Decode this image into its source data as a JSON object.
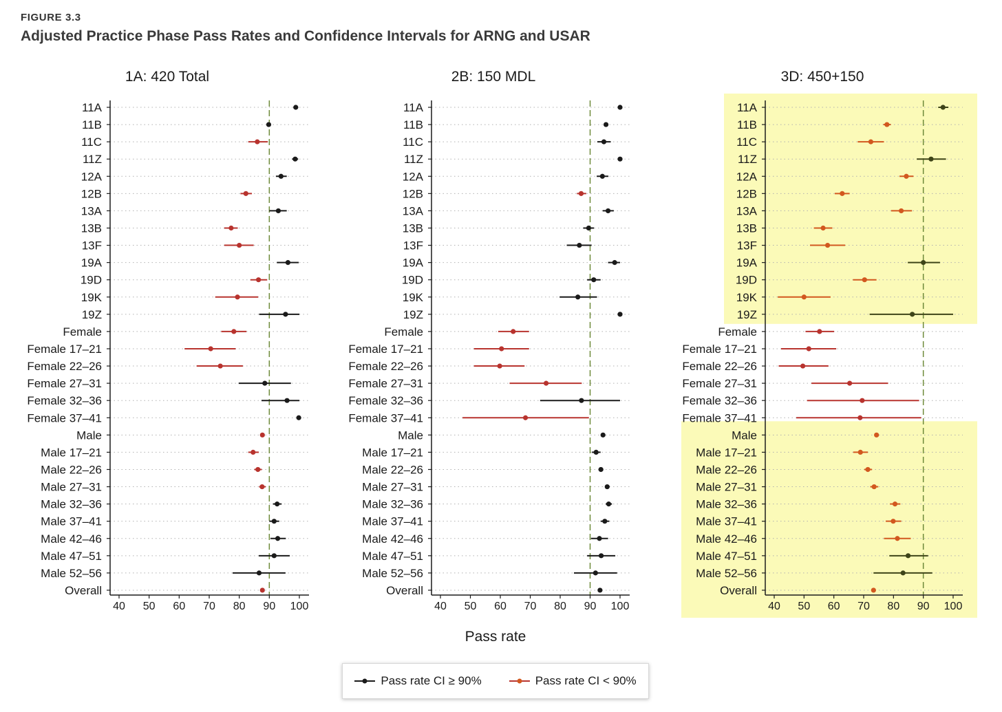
{
  "figure": {
    "label": "FIGURE 3.3",
    "title": "Adjusted Practice Phase Pass Rates and Confidence Intervals for ARNG and USAR"
  },
  "legend": {
    "items": [
      {
        "label": "Pass rate CI ≥ 90%",
        "color": "#1a1a1a"
      },
      {
        "label": "Pass rate CI < 90%",
        "color": "#b8332e"
      }
    ]
  },
  "colors": {
    "black": "#1a1a1a",
    "red": "#b8332e",
    "orange": "#d2581f",
    "olive": "#3e4418",
    "highlight": "#fbfab8",
    "reference_line": "#6e8a3a"
  },
  "chart_data": {
    "type": "forest",
    "xlabel": "Pass rate",
    "xlim": [
      40,
      100
    ],
    "xticks": [
      40,
      50,
      60,
      70,
      80,
      90,
      100
    ],
    "reference_line": 90,
    "categories": [
      "11A",
      "11B",
      "11C",
      "11Z",
      "12A",
      "12B",
      "13A",
      "13B",
      "13F",
      "19A",
      "19D",
      "19K",
      "19Z",
      "Female",
      "Female 17–21",
      "Female 22–26",
      "Female 27–31",
      "Female 32–36",
      "Female 37–41",
      "Male",
      "Male 17–21",
      "Male 22–26",
      "Male 27–31",
      "Male 32–36",
      "Male 37–41",
      "Male 42–46",
      "Male 47–51",
      "Male 52–56",
      "Overall"
    ],
    "panels": [
      {
        "title": "1A: 420 Total",
        "highlight_rows": [],
        "rows": [
          {
            "est": 98.8,
            "lo": 98.0,
            "hi": 99.6,
            "meets": true
          },
          {
            "est": 89.8,
            "lo": 89.3,
            "hi": 90.3,
            "meets": true
          },
          {
            "est": 86.0,
            "lo": 83.0,
            "hi": 89.5,
            "meets": false
          },
          {
            "est": 98.6,
            "lo": 97.6,
            "hi": 99.6,
            "meets": true
          },
          {
            "est": 93.9,
            "lo": 92.2,
            "hi": 95.8,
            "meets": true
          },
          {
            "est": 82.2,
            "lo": 80.4,
            "hi": 84.2,
            "meets": false
          },
          {
            "est": 93.0,
            "lo": 90.0,
            "hi": 95.8,
            "meets": true
          },
          {
            "est": 77.3,
            "lo": 75.0,
            "hi": 79.5,
            "meets": false
          },
          {
            "est": 80.0,
            "lo": 75.0,
            "hi": 84.8,
            "meets": false
          },
          {
            "est": 96.2,
            "lo": 92.5,
            "hi": 99.8,
            "meets": true
          },
          {
            "est": 86.4,
            "lo": 83.7,
            "hi": 89.3,
            "meets": false
          },
          {
            "est": 79.4,
            "lo": 72.0,
            "hi": 86.3,
            "meets": false
          },
          {
            "est": 95.4,
            "lo": 86.6,
            "hi": 100.0,
            "meets": true
          },
          {
            "est": 78.2,
            "lo": 74.0,
            "hi": 82.4,
            "meets": false
          },
          {
            "est": 70.5,
            "lo": 61.8,
            "hi": 78.8,
            "meets": false
          },
          {
            "est": 73.7,
            "lo": 65.8,
            "hi": 81.2,
            "meets": false
          },
          {
            "est": 88.5,
            "lo": 79.8,
            "hi": 97.2,
            "meets": true
          },
          {
            "est": 95.9,
            "lo": 87.4,
            "hi": 100.0,
            "meets": true
          },
          {
            "est": 99.8,
            "lo": 99.3,
            "hi": 100.0,
            "meets": true
          },
          {
            "est": 87.7,
            "lo": 87.0,
            "hi": 88.4,
            "meets": false
          },
          {
            "est": 84.6,
            "lo": 83.0,
            "hi": 86.5,
            "meets": false
          },
          {
            "est": 86.2,
            "lo": 85.0,
            "hi": 87.5,
            "meets": false
          },
          {
            "est": 87.6,
            "lo": 86.6,
            "hi": 88.8,
            "meets": false
          },
          {
            "est": 92.6,
            "lo": 91.2,
            "hi": 94.1,
            "meets": true
          },
          {
            "est": 91.6,
            "lo": 90.0,
            "hi": 93.3,
            "meets": true
          },
          {
            "est": 92.8,
            "lo": 90.4,
            "hi": 95.5,
            "meets": true
          },
          {
            "est": 91.6,
            "lo": 86.5,
            "hi": 96.8,
            "meets": true
          },
          {
            "est": 86.6,
            "lo": 77.8,
            "hi": 95.4,
            "meets": true
          },
          {
            "est": 87.7,
            "lo": 87.0,
            "hi": 88.4,
            "meets": false
          }
        ]
      },
      {
        "title": "2B: 150 MDL",
        "highlight_rows": [],
        "rows": [
          {
            "est": 100.0,
            "lo": 99.5,
            "hi": 100.0,
            "meets": true
          },
          {
            "est": 95.3,
            "lo": 94.8,
            "hi": 95.9,
            "meets": true
          },
          {
            "est": 94.6,
            "lo": 92.4,
            "hi": 96.9,
            "meets": true
          },
          {
            "est": 100.0,
            "lo": 99.5,
            "hi": 100.0,
            "meets": true
          },
          {
            "est": 94.1,
            "lo": 92.2,
            "hi": 96.1,
            "meets": true
          },
          {
            "est": 87.0,
            "lo": 85.6,
            "hi": 88.7,
            "meets": false
          },
          {
            "est": 96.0,
            "lo": 94.2,
            "hi": 97.9,
            "meets": true
          },
          {
            "est": 89.5,
            "lo": 87.7,
            "hi": 91.3,
            "meets": true
          },
          {
            "est": 86.4,
            "lo": 82.2,
            "hi": 90.5,
            "meets": true
          },
          {
            "est": 98.2,
            "lo": 96.0,
            "hi": 100.0,
            "meets": true
          },
          {
            "est": 91.2,
            "lo": 89.0,
            "hi": 93.5,
            "meets": true
          },
          {
            "est": 85.9,
            "lo": 79.8,
            "hi": 92.3,
            "meets": true
          },
          {
            "est": 100.0,
            "lo": 99.5,
            "hi": 100.0,
            "meets": true
          },
          {
            "est": 64.3,
            "lo": 59.3,
            "hi": 69.6,
            "meets": false
          },
          {
            "est": 60.4,
            "lo": 51.2,
            "hi": 69.6,
            "meets": false
          },
          {
            "est": 59.8,
            "lo": 51.2,
            "hi": 68.1,
            "meets": false
          },
          {
            "est": 75.3,
            "lo": 63.1,
            "hi": 87.2,
            "meets": false
          },
          {
            "est": 87.1,
            "lo": 73.3,
            "hi": 100.0,
            "meets": true
          },
          {
            "est": 68.4,
            "lo": 47.4,
            "hi": 89.6,
            "meets": false
          },
          {
            "est": 94.3,
            "lo": 93.8,
            "hi": 94.9,
            "meets": true
          },
          {
            "est": 92.0,
            "lo": 90.6,
            "hi": 93.5,
            "meets": true
          },
          {
            "est": 93.6,
            "lo": 92.9,
            "hi": 94.4,
            "meets": true
          },
          {
            "est": 95.7,
            "lo": 95.0,
            "hi": 96.5,
            "meets": true
          },
          {
            "est": 96.2,
            "lo": 95.2,
            "hi": 97.3,
            "meets": true
          },
          {
            "est": 94.9,
            "lo": 93.5,
            "hi": 96.4,
            "meets": true
          },
          {
            "est": 93.1,
            "lo": 90.3,
            "hi": 96.0,
            "meets": true
          },
          {
            "est": 93.7,
            "lo": 89.0,
            "hi": 98.4,
            "meets": true
          },
          {
            "est": 91.8,
            "lo": 84.6,
            "hi": 99.0,
            "meets": true
          },
          {
            "est": 93.3,
            "lo": 92.8,
            "hi": 93.9,
            "meets": true
          }
        ]
      },
      {
        "title": "3D: 450+150",
        "highlight_rows": [
          [
            0,
            12
          ],
          [
            19,
            28
          ]
        ],
        "rows": [
          {
            "est": 96.6,
            "lo": 95.0,
            "hi": 98.4,
            "meets": true
          },
          {
            "est": 77.8,
            "lo": 76.6,
            "hi": 79.1,
            "meets": false
          },
          {
            "est": 72.4,
            "lo": 68.0,
            "hi": 76.8,
            "meets": false
          },
          {
            "est": 92.6,
            "lo": 87.8,
            "hi": 97.6,
            "meets": true
          },
          {
            "est": 84.3,
            "lo": 82.0,
            "hi": 86.7,
            "meets": false
          },
          {
            "est": 62.8,
            "lo": 60.3,
            "hi": 65.3,
            "meets": false
          },
          {
            "est": 82.6,
            "lo": 79.2,
            "hi": 86.2,
            "meets": false
          },
          {
            "est": 56.4,
            "lo": 53.3,
            "hi": 59.5,
            "meets": false
          },
          {
            "est": 57.9,
            "lo": 52.0,
            "hi": 63.8,
            "meets": false
          },
          {
            "est": 90.0,
            "lo": 84.8,
            "hi": 95.6,
            "meets": true
          },
          {
            "est": 70.3,
            "lo": 66.4,
            "hi": 74.3,
            "meets": false
          },
          {
            "est": 50.0,
            "lo": 41.2,
            "hi": 58.9,
            "meets": false
          },
          {
            "est": 86.3,
            "lo": 72.0,
            "hi": 100.0,
            "meets": true
          },
          {
            "est": 55.2,
            "lo": 50.5,
            "hi": 60.1,
            "meets": false
          },
          {
            "est": 51.6,
            "lo": 42.3,
            "hi": 60.8,
            "meets": false
          },
          {
            "est": 49.6,
            "lo": 41.5,
            "hi": 58.2,
            "meets": false
          },
          {
            "est": 65.3,
            "lo": 52.5,
            "hi": 78.2,
            "meets": false
          },
          {
            "est": 69.5,
            "lo": 51.0,
            "hi": 88.6,
            "meets": false
          },
          {
            "est": 68.8,
            "lo": 47.4,
            "hi": 89.3,
            "meets": false
          },
          {
            "est": 74.3,
            "lo": 73.6,
            "hi": 75.1,
            "meets": false
          },
          {
            "est": 68.9,
            "lo": 66.5,
            "hi": 71.4,
            "meets": false
          },
          {
            "est": 71.4,
            "lo": 70.2,
            "hi": 72.8,
            "meets": false
          },
          {
            "est": 73.5,
            "lo": 72.2,
            "hi": 74.9,
            "meets": false
          },
          {
            "est": 80.5,
            "lo": 78.8,
            "hi": 82.3,
            "meets": false
          },
          {
            "est": 79.9,
            "lo": 77.4,
            "hi": 82.6,
            "meets": false
          },
          {
            "est": 81.3,
            "lo": 76.8,
            "hi": 85.8,
            "meets": false
          },
          {
            "est": 84.9,
            "lo": 78.6,
            "hi": 91.6,
            "meets": true
          },
          {
            "est": 83.2,
            "lo": 73.3,
            "hi": 93.0,
            "meets": true
          },
          {
            "est": 73.3,
            "lo": 72.7,
            "hi": 73.9,
            "meets": false
          }
        ]
      }
    ]
  }
}
